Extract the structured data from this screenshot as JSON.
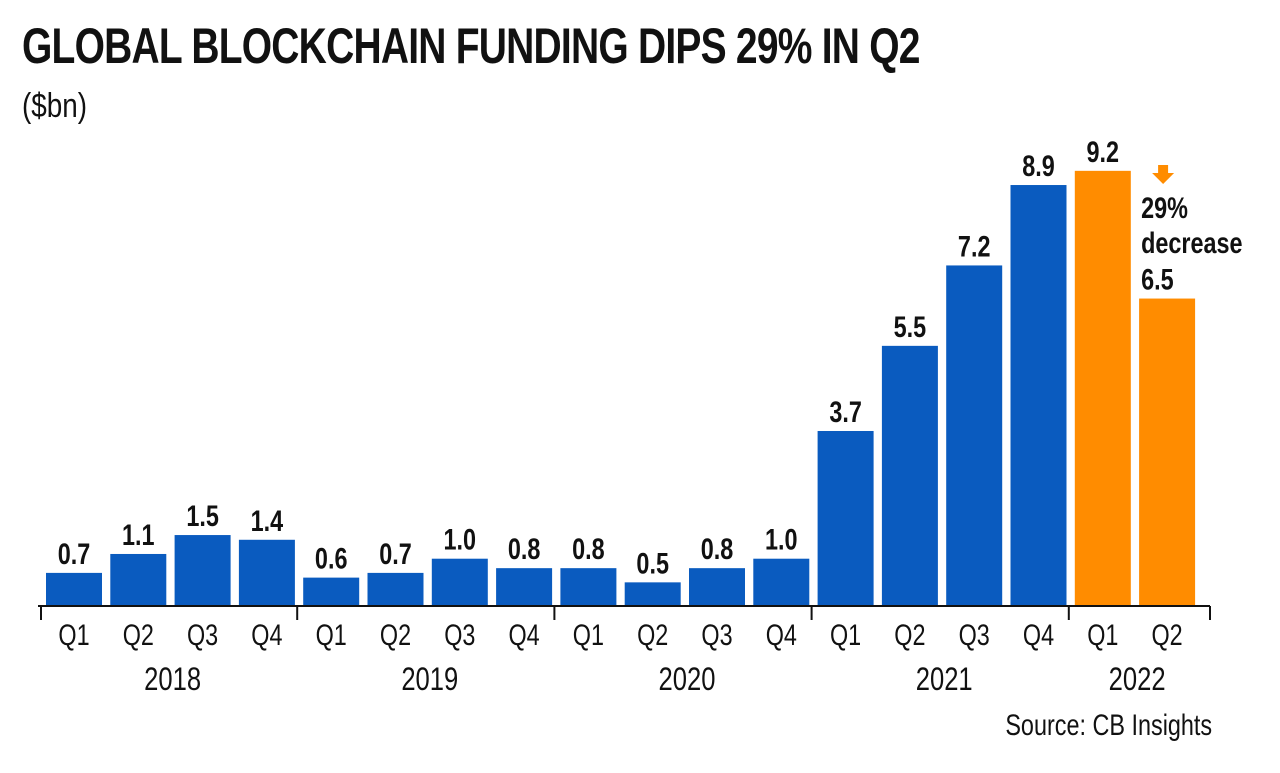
{
  "title": "GLOBAL BLOCKCHAIN FUNDING DIPS 29% IN Q2",
  "subtitle": "($bn)",
  "source": "Source: CB Insights",
  "colors": {
    "primary_bar": "#0a5bbf",
    "highlight_bar": "#ff8c00",
    "axis": "#111111",
    "text": "#111111"
  },
  "chart_data": {
    "type": "bar",
    "categories": [
      "Q1",
      "Q2",
      "Q3",
      "Q4",
      "Q1",
      "Q2",
      "Q3",
      "Q4",
      "Q1",
      "Q2",
      "Q3",
      "Q4",
      "Q1",
      "Q2",
      "Q3",
      "Q4",
      "Q1",
      "Q2"
    ],
    "years": [
      "2018",
      "2019",
      "2020",
      "2021",
      "2022"
    ],
    "values": [
      0.7,
      1.1,
      1.5,
      1.4,
      0.6,
      0.7,
      1.0,
      0.8,
      0.8,
      0.5,
      0.8,
      1.0,
      3.7,
      5.5,
      7.2,
      8.9,
      9.2,
      6.5
    ],
    "value_labels": [
      "0.7",
      "1.1",
      "1.5",
      "1.4",
      "0.6",
      "0.7",
      "1.0",
      "0.8",
      "0.8",
      "0.5",
      "0.8",
      "1.0",
      "3.7",
      "5.5",
      "7.2",
      "8.9",
      "9.2",
      "6.5"
    ],
    "highlighted": [
      "2022 Q1",
      "2022 Q2"
    ],
    "ylim": [
      0,
      10
    ],
    "xlabel": "",
    "ylabel": "",
    "grid": false,
    "annotation": {
      "line1": "29%",
      "line2": "decrease",
      "icon": "down-arrow-icon"
    }
  }
}
